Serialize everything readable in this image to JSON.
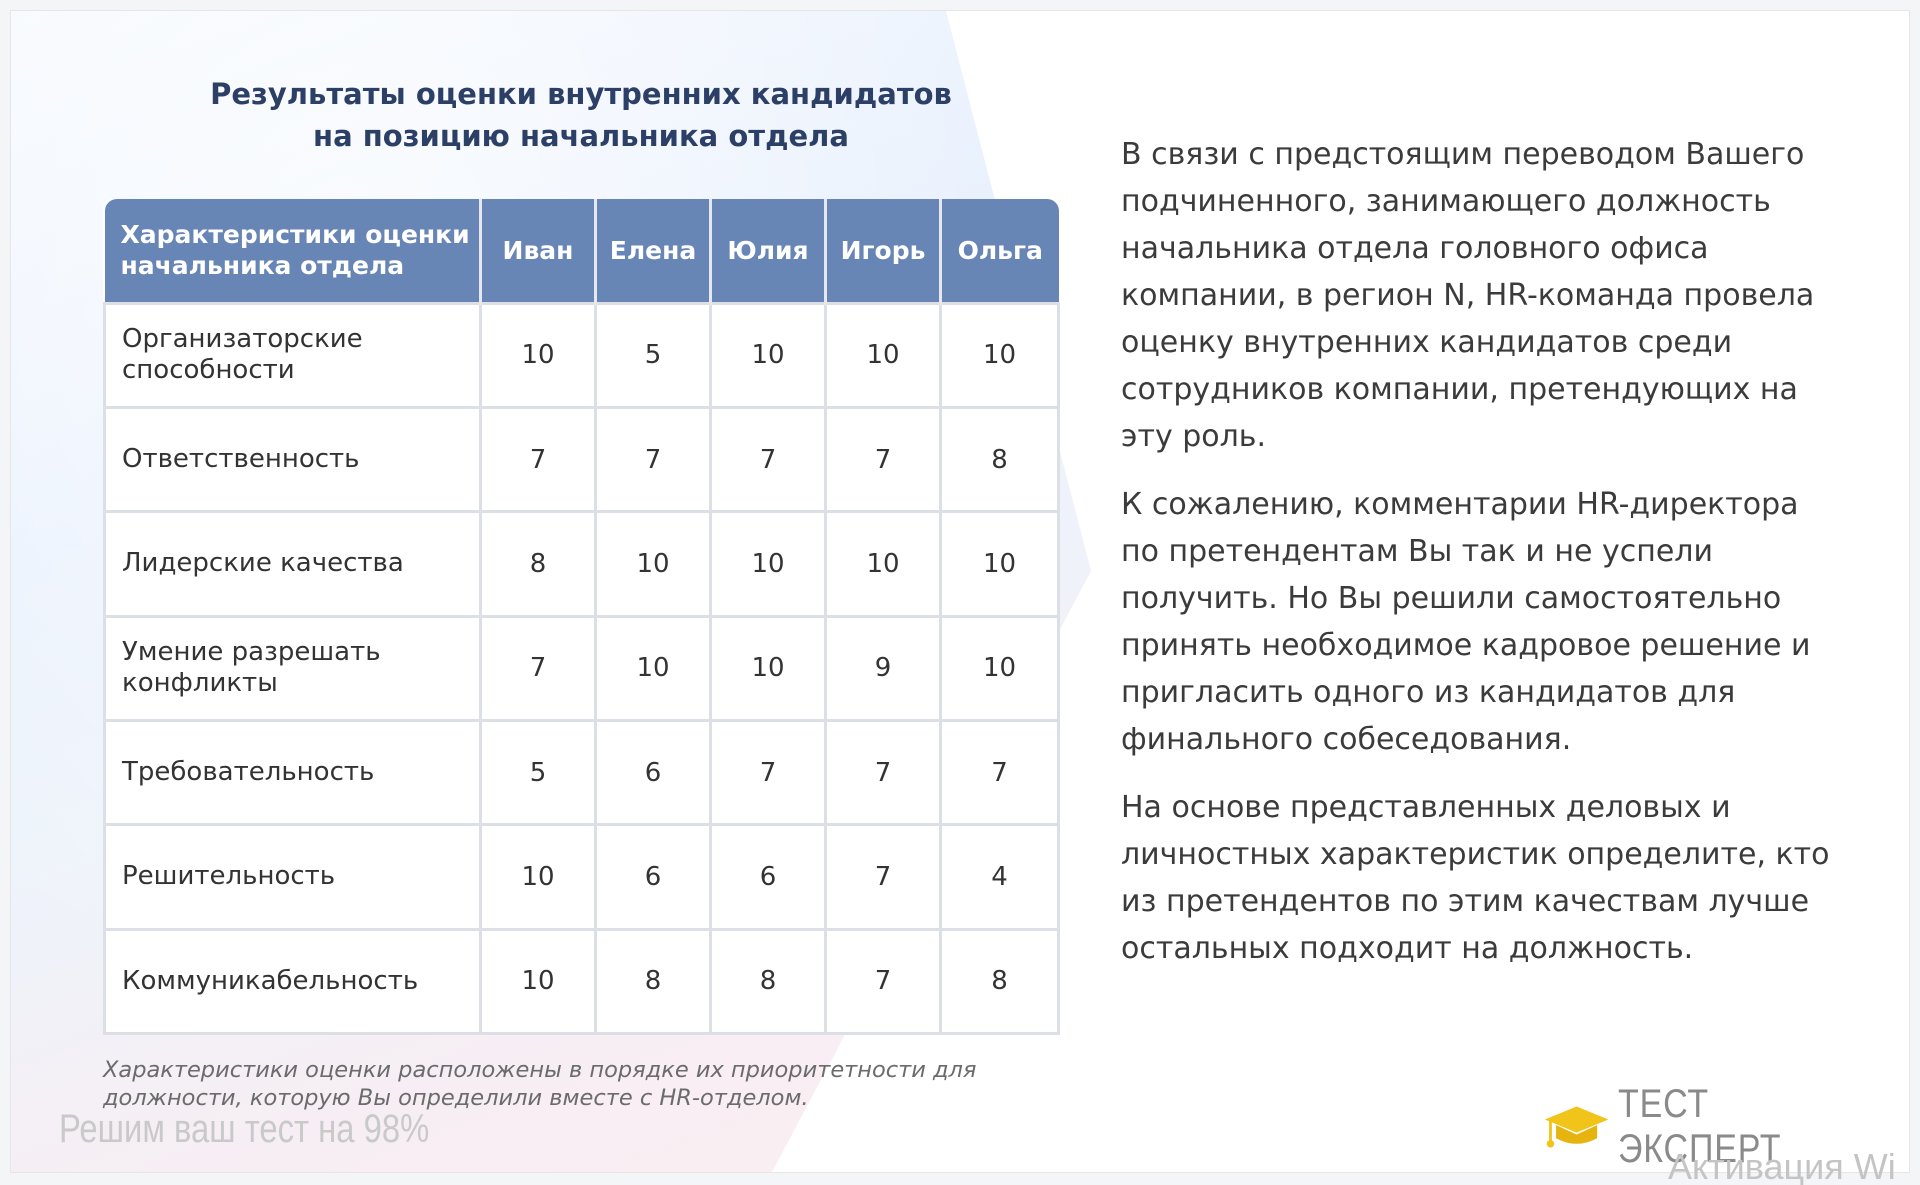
{
  "title": {
    "line1": "Результаты оценки внутренних кандидатов",
    "line2": "на позицию начальника отдела"
  },
  "table": {
    "header_criteria": "Характеристики оценки начальника отдела",
    "candidates": [
      "Иван",
      "Елена",
      "Юлия",
      "Игорь",
      "Ольга"
    ],
    "rows": [
      {
        "criterion": "Организаторские способности",
        "scores": [
          "10",
          "5",
          "10",
          "10",
          "10"
        ]
      },
      {
        "criterion": "Ответственность",
        "scores": [
          "7",
          "7",
          "7",
          "7",
          "8"
        ]
      },
      {
        "criterion": "Лидерские качества",
        "scores": [
          "8",
          "10",
          "10",
          "10",
          "10"
        ]
      },
      {
        "criterion": "Умение разрешать конфликты",
        "scores": [
          "7",
          "10",
          "10",
          "9",
          "10"
        ]
      },
      {
        "criterion": "Требовательность",
        "scores": [
          "5",
          "6",
          "7",
          "7",
          "7"
        ]
      },
      {
        "criterion": "Решительность",
        "scores": [
          "10",
          "6",
          "6",
          "7",
          "4"
        ]
      },
      {
        "criterion": "Коммуникабельность",
        "scores": [
          "10",
          "8",
          "8",
          "7",
          "8"
        ]
      }
    ]
  },
  "footnote": "Характеристики оценки расположены в порядке их приоритетности для должности, которую Вы определили вместе с HR-отделом.",
  "watermark": "Решим ваш тест на 98%",
  "paragraphs": [
    "В связи с предстоящим переводом Вашего подчиненного, занимающего должность начальника отдела головного офиса компании, в регион N, HR-команда провела оценку внутренних кандидатов среди сотрудников компании, претендующих на эту роль.",
    "К сожалению, комментарии HR-директора по претендентам Вы так и не успели получить. Но Вы решили самостоятельно принять необходимое кадровое решение и пригласить одного из кандидатов для финального собеседования.",
    "На основе представленных деловых и личностных характеристик определите, кто из претендентов по этим качествам лучше остальных подходит на должность."
  ],
  "brand": {
    "text": "ТЕСТ ЭКСПЕРТ",
    "icon": "graduation-cap-icon"
  },
  "os_watermark": "Активация Wi",
  "colors": {
    "header_bg": "#6886b5",
    "title": "#2c3f66",
    "brand_icon": "#f0c419"
  }
}
